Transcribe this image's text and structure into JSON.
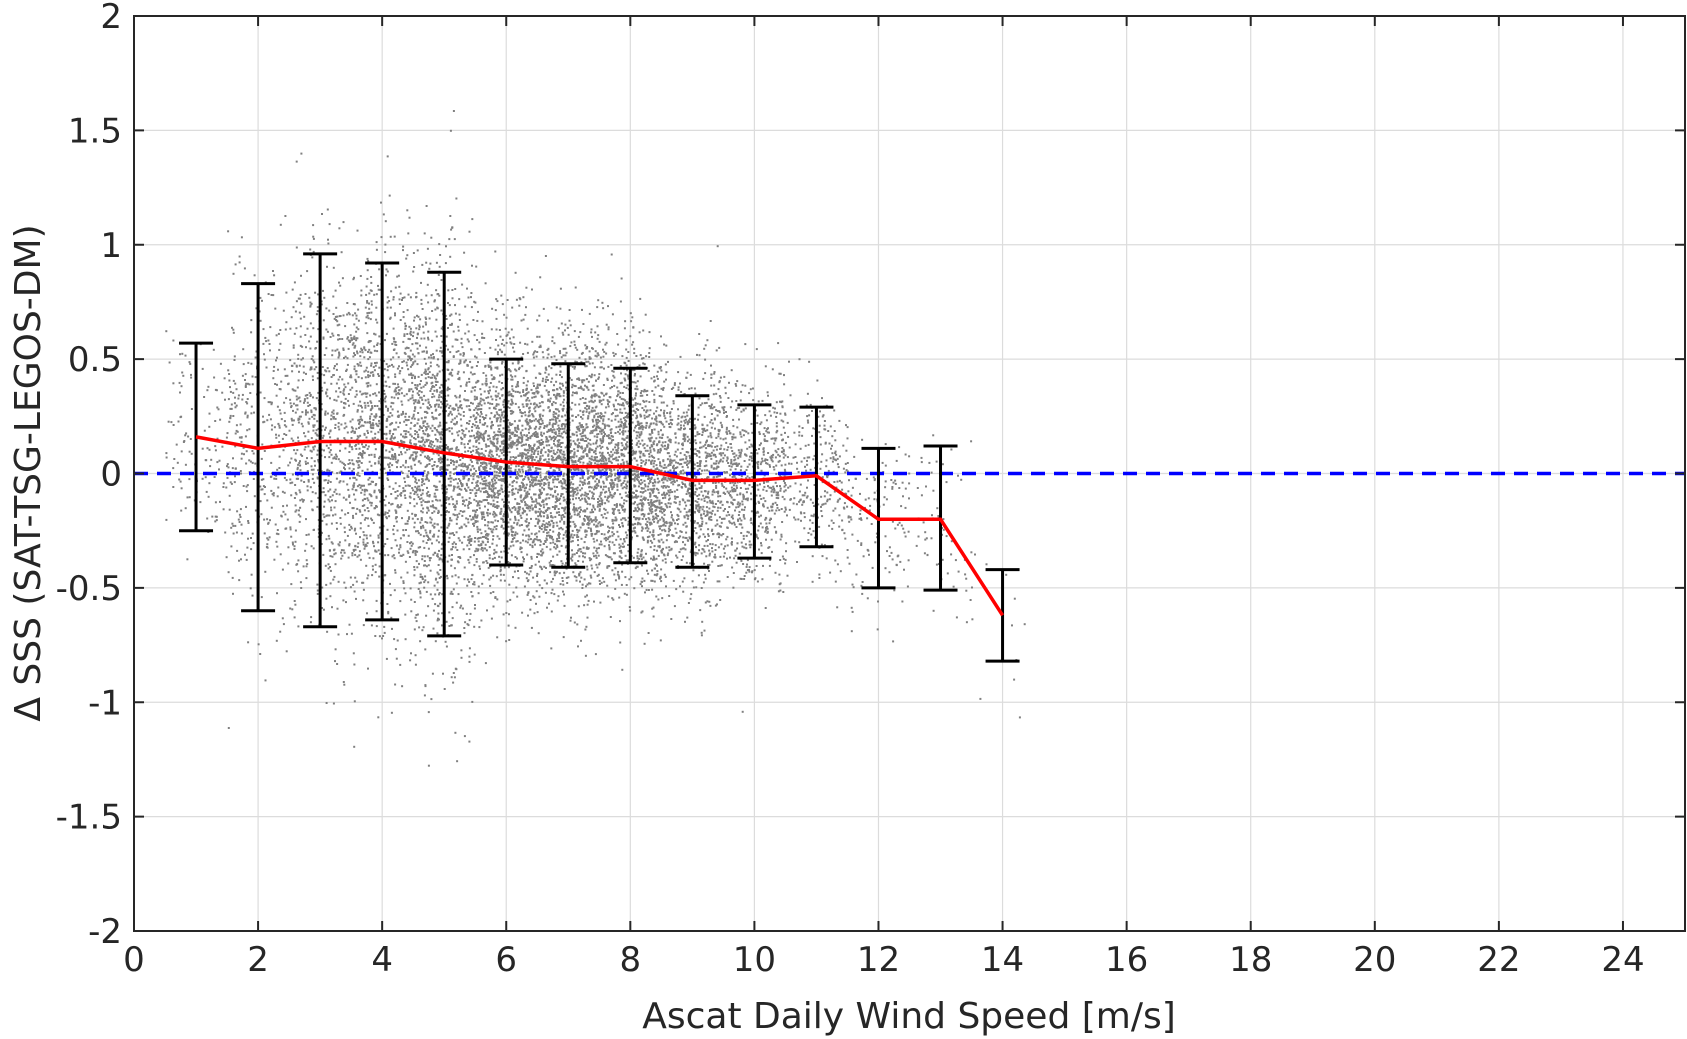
{
  "chart_data": {
    "type": "scatter",
    "title": "",
    "xlabel": "Ascat Daily Wind Speed [m/s]",
    "ylabel": "Δ SSS (SAT-TSG-LEGOS-DM)",
    "xlim": [
      0,
      25
    ],
    "ylim": [
      -2,
      2
    ],
    "xticks": [
      0,
      2,
      4,
      6,
      8,
      10,
      12,
      14,
      16,
      18,
      20,
      22,
      24
    ],
    "yticks": [
      -2,
      -1.5,
      -1,
      -0.5,
      0,
      0.5,
      1,
      1.5,
      2
    ],
    "xtick_labels": [
      "0",
      "2",
      "4",
      "6",
      "8",
      "10",
      "12",
      "14",
      "16",
      "18",
      "20",
      "22",
      "24"
    ],
    "ytick_labels": [
      "-2",
      "-1.5",
      "-1",
      "-0.5",
      "0",
      "0.5",
      "1",
      "1.5",
      "2"
    ],
    "grid": true,
    "scatter": {
      "color": "#808080",
      "clusters": [
        {
          "x": 1,
          "mean": 0.16,
          "std": 0.22,
          "n": 120
        },
        {
          "x": 2,
          "mean": 0.11,
          "std": 0.35,
          "n": 350
        },
        {
          "x": 3,
          "mean": 0.14,
          "std": 0.4,
          "n": 700
        },
        {
          "x": 4,
          "mean": 0.14,
          "std": 0.4,
          "n": 1000
        },
        {
          "x": 5,
          "mean": 0.08,
          "std": 0.4,
          "n": 1300
        },
        {
          "x": 6,
          "mean": 0.05,
          "std": 0.28,
          "n": 1500
        },
        {
          "x": 7,
          "mean": 0.03,
          "std": 0.28,
          "n": 1500
        },
        {
          "x": 8,
          "mean": 0.03,
          "std": 0.26,
          "n": 1300
        },
        {
          "x": 9,
          "mean": -0.03,
          "std": 0.24,
          "n": 900
        },
        {
          "x": 10,
          "mean": -0.03,
          "std": 0.21,
          "n": 600
        },
        {
          "x": 11,
          "mean": -0.01,
          "std": 0.2,
          "n": 250
        },
        {
          "x": 12,
          "mean": -0.2,
          "std": 0.2,
          "n": 120
        },
        {
          "x": 13,
          "mean": -0.2,
          "std": 0.2,
          "n": 60
        },
        {
          "x": 14,
          "mean": -0.62,
          "std": 0.18,
          "n": 10
        }
      ]
    },
    "series": [
      {
        "type": "errorbar",
        "color": "#000000",
        "x": [
          1,
          2,
          3,
          4,
          5,
          6,
          7,
          8,
          9,
          10,
          11,
          12,
          13,
          14
        ],
        "upper": [
          0.57,
          0.83,
          0.96,
          0.92,
          0.88,
          0.5,
          0.48,
          0.46,
          0.34,
          0.3,
          0.29,
          0.11,
          0.12,
          -0.42
        ],
        "lower": [
          -0.25,
          -0.6,
          -0.67,
          -0.64,
          -0.71,
          -0.4,
          -0.41,
          -0.39,
          -0.41,
          -0.37,
          -0.32,
          -0.5,
          -0.51,
          -0.82
        ]
      },
      {
        "type": "line",
        "color": "#ff0000",
        "x": [
          1,
          2,
          3,
          4,
          5,
          6,
          7,
          8,
          9,
          10,
          11,
          12,
          13,
          14
        ],
        "values": [
          0.16,
          0.11,
          0.14,
          0.14,
          0.09,
          0.05,
          0.03,
          0.03,
          -0.03,
          -0.03,
          -0.01,
          -0.2,
          -0.2,
          -0.62
        ]
      },
      {
        "type": "reference-line",
        "style": "dashed",
        "color": "#0000ff",
        "y": 0
      }
    ]
  }
}
